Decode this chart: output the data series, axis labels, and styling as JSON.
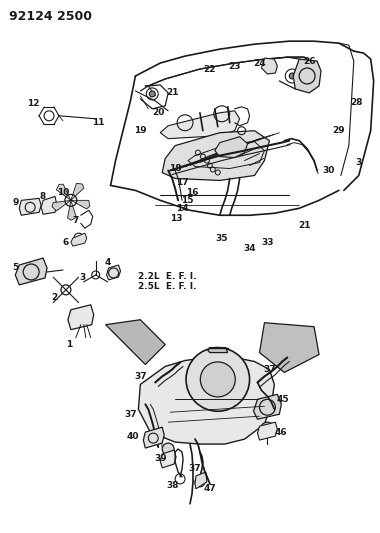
{
  "title": "92124 2500",
  "bg_color": "#ffffff",
  "line_color": "#1a1a1a",
  "title_fontsize": 9,
  "label_fontsize": 6.5,
  "annotation_text": "2.2L  E. F. I.\n2.5L  E. F. I.",
  "fig_w": 3.8,
  "fig_h": 5.33,
  "dpi": 100
}
